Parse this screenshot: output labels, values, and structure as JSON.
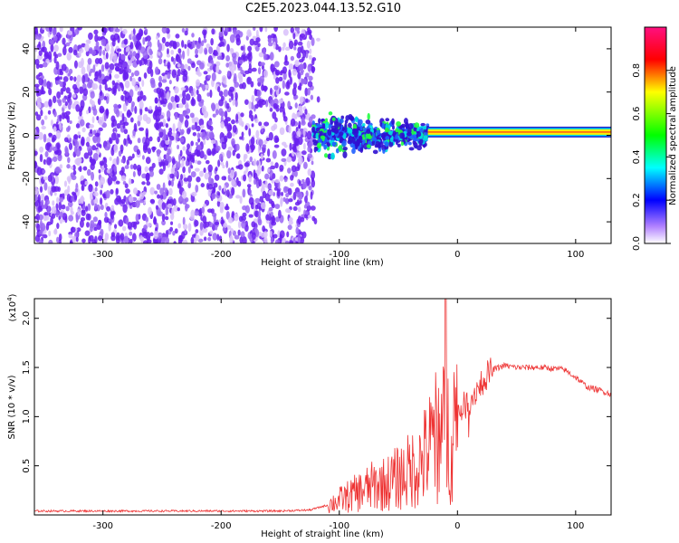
{
  "title": "C2E5.2023.044.13.52.G10",
  "chart_data": [
    {
      "type": "heatmap",
      "xlabel": "Height of straight line (km)",
      "ylabel": "Frequency (Hz)",
      "xlim": [
        -358,
        130
      ],
      "ylim": [
        -50,
        50
      ],
      "xticks": [
        -300,
        -200,
        -100,
        0,
        100
      ],
      "yticks": [
        -40,
        -20,
        0,
        20,
        40
      ],
      "grid": false,
      "colorbar": {
        "label": "Normalized spectral amplitude",
        "range": [
          0,
          1
        ],
        "ticks": [
          "0.0",
          "0.2",
          "0.4",
          "0.6",
          "0.8"
        ],
        "colors": [
          "#ffffff",
          "#a050ff",
          "#0000ff",
          "#00ffff",
          "#00ff00",
          "#ffff00",
          "#ff0000",
          "#ff0080"
        ]
      },
      "regions": [
        {
          "x": [
            -358,
            -122
          ],
          "freq": [
            -50,
            50
          ],
          "amplitude": 0.1
        },
        {
          "x": [
            -122,
            -25
          ],
          "freq": [
            -12,
            12
          ],
          "amplitude": 0.35
        },
        {
          "x": [
            -25,
            130
          ],
          "freq": [
            0,
            3
          ],
          "amplitude": 0.7
        }
      ]
    },
    {
      "type": "line",
      "xlabel": "Height of straight line (km)",
      "ylabel": "SNR (10 * v/v)",
      "y_multiplier": "(x10",
      "y_multiplier_exp": "4",
      "xlim": [
        -358,
        130
      ],
      "ylim": [
        0,
        2.2
      ],
      "xticks": [
        -300,
        -200,
        -100,
        0,
        100
      ],
      "yticks": [
        0.5,
        1.0,
        1.5,
        2.0
      ],
      "grid": false,
      "line_color": "#ee3333",
      "series": [
        {
          "x": [
            -358,
            -300,
            -250,
            -200,
            -150,
            -125,
            -110,
            -100,
            -90,
            -80,
            -70,
            -60,
            -50,
            -40,
            -30,
            -20,
            -15,
            -10,
            -5,
            0,
            5,
            10,
            15,
            20,
            25,
            30,
            40,
            50,
            60,
            70,
            80,
            90,
            100,
            110,
            120,
            130
          ],
          "values": [
            0.04,
            0.04,
            0.04,
            0.04,
            0.04,
            0.05,
            0.1,
            0.15,
            0.2,
            0.25,
            0.3,
            0.32,
            0.38,
            0.45,
            0.55,
            0.75,
            0.85,
            0.8,
            0.9,
            1.05,
            1.1,
            1.15,
            1.25,
            1.35,
            1.42,
            1.48,
            1.52,
            1.5,
            1.5,
            1.5,
            1.49,
            1.48,
            1.4,
            1.3,
            1.27,
            1.23
          ]
        }
      ]
    }
  ]
}
